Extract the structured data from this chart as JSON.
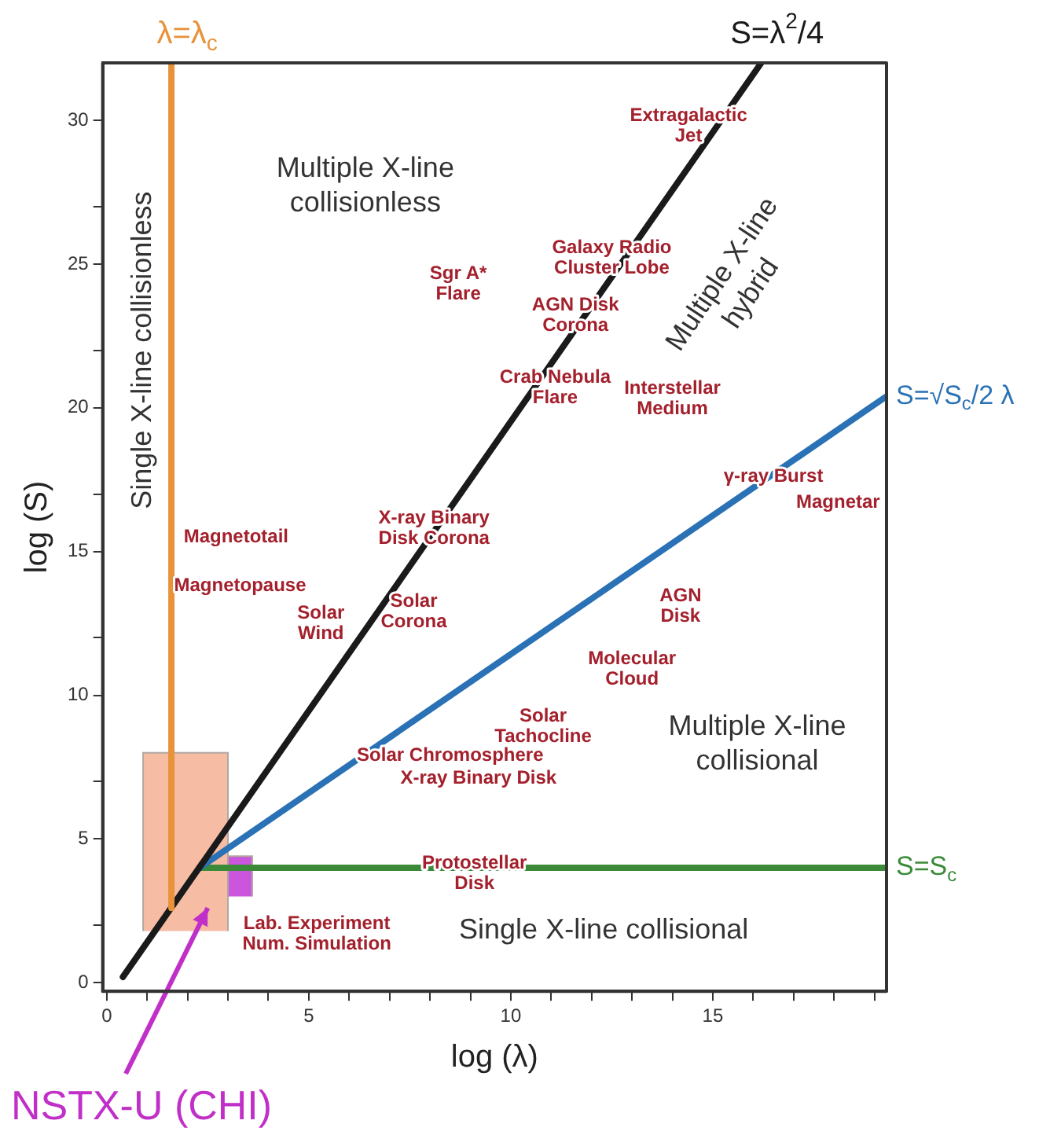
{
  "chart_data": {
    "type": "line",
    "xlabel": "log (λ)",
    "ylabel": "log (S)",
    "xlim": [
      -0.1,
      19.3
    ],
    "ylim": [
      -0.3,
      32
    ],
    "xticks": [
      0,
      {
        "value": 1,
        "label": null
      },
      {
        "value": 2,
        "label": null
      },
      {
        "value": 3,
        "label": null
      },
      {
        "value": 4,
        "label": null
      },
      5,
      {
        "value": 6,
        "label": null
      },
      {
        "value": 7,
        "label": null
      },
      {
        "value": 8,
        "label": null
      },
      {
        "value": 9,
        "label": null
      },
      10,
      {
        "value": 11,
        "label": null
      },
      {
        "value": 12,
        "label": null
      },
      {
        "value": 13,
        "label": null
      },
      {
        "value": 14,
        "label": null
      },
      15,
      {
        "value": 16,
        "label": null
      },
      {
        "value": 17,
        "label": null
      },
      {
        "value": 18,
        "label": null
      },
      {
        "value": 19,
        "label": null
      }
    ],
    "yticks": [
      0,
      {
        "value": 2,
        "label": null
      },
      5,
      {
        "value": 7,
        "label": null
      },
      10,
      {
        "value": 12,
        "label": null
      },
      15,
      {
        "value": 17,
        "label": null
      },
      20,
      {
        "value": 22,
        "label": null
      },
      25,
      {
        "value": 27,
        "label": null
      },
      30
    ],
    "grid": false,
    "legend": false,
    "marker": "none",
    "series": [
      {
        "type": "area",
        "color": "#f7bca4",
        "x": [
          0.9,
          0.9,
          3.0,
          3.0
        ],
        "values": [
          1.8,
          8.0,
          8.0,
          1.8
        ]
      },
      {
        "type": "area",
        "color": "#cc55dd",
        "x": [
          3.0,
          3.0,
          3.6,
          3.6
        ],
        "values": [
          3.0,
          4.4,
          4.4,
          3.0
        ]
      },
      {
        "name": "λ=λ$_{c}$",
        "color": "#e8923a",
        "x": [
          1.6,
          1.6
        ],
        "values": [
          2.6,
          32
        ]
      },
      {
        "name": "S=λ$^{2}$/4",
        "color": "#1a1a1a",
        "x": [
          0.4,
          16.2
        ],
        "values": [
          0.2,
          32
        ]
      },
      {
        "name": "S=√S$_{c}$/2 λ",
        "color": "#2a72b5",
        "x": [
          2.3,
          19.3
        ],
        "values": [
          4.0,
          20.4
        ]
      },
      {
        "name": "S=S$_{c}$",
        "color": "#3a8a3a",
        "x": [
          2.3,
          19.3
        ],
        "values": [
          4.0,
          4.0
        ]
      }
    ],
    "annotations": [
      "Extragalactic\nJet",
      "Galaxy Radio\nCluster Lobe",
      "Sgr A*\nFlare",
      "AGN Disk\nCorona",
      "Crab Nebula\nFlare",
      "Interstellar\nMedium",
      "γ-ray Burst",
      "Magnetar",
      "X-ray Binary\nDisk Corona",
      "Magnetotail",
      "Magnetopause",
      "Solar\nWind",
      "Solar\nCorona",
      "AGN\nDisk",
      "Molecular\nCloud",
      "Solar\nTachocline",
      "Solar Chromosphere",
      "X-ray Binary Disk",
      "Protostellar\nDisk",
      "Lab. Experiment\nNum. Simulation",
      "Multiple X-line\ncollisionless",
      "Multiple X-line\nhybrid",
      "Multiple X-line\ncollisional",
      "Single X-line collisional",
      "Single X-line collisionless",
      "NSTX-U (CHI)"
    ]
  }
}
